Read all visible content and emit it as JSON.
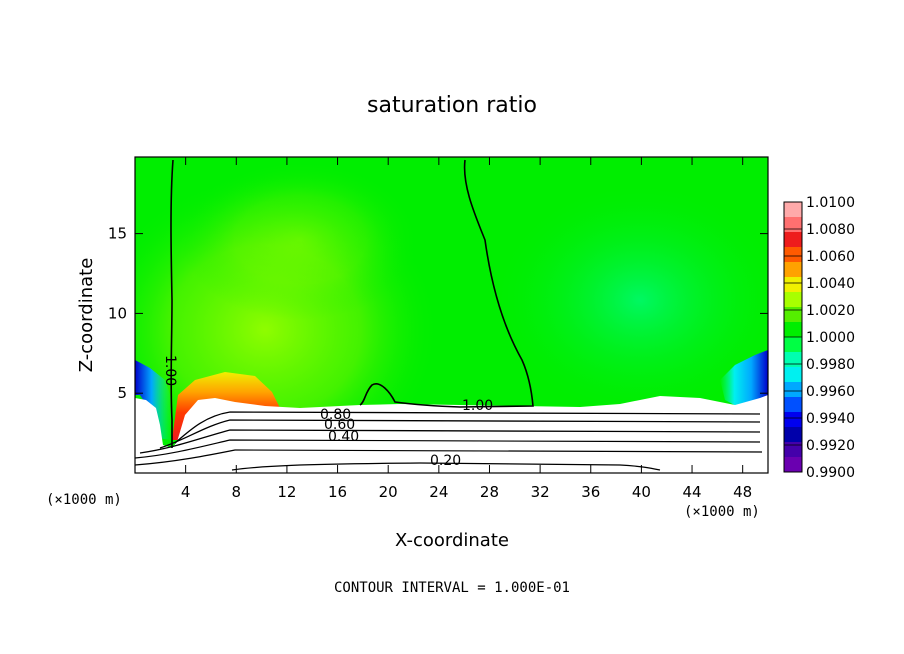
{
  "chart_data": {
    "type": "heatmap",
    "title": "saturation ratio",
    "xlabel": "X-coordinate",
    "ylabel": "Z-coordinate",
    "x_unit": "(×1000 m)",
    "y_unit": "(×1000 m)",
    "xlim": [
      0,
      50
    ],
    "ylim": [
      0,
      19.8
    ],
    "x_ticks": [
      4,
      8,
      12,
      16,
      20,
      24,
      28,
      32,
      36,
      40,
      44,
      48
    ],
    "y_ticks": [
      5,
      10,
      15
    ],
    "colorbar": {
      "min": 0.99,
      "max": 1.01,
      "labels": [
        "1.0100",
        "1.0080",
        "1.0060",
        "1.0040",
        "1.0020",
        "1.0000",
        "0.9980",
        "0.9960",
        "0.9940",
        "0.9920",
        "0.9900"
      ],
      "colors": [
        "#ffaaaa",
        "#ff7070",
        "#ee1c1c",
        "#ff5a00",
        "#ffa200",
        "#f0f000",
        "#a8ff00",
        "#55ee00",
        "#00ee00",
        "#00ff44",
        "#00ffb0",
        "#00f0f0",
        "#00a8ff",
        "#0050ff",
        "#0000ee",
        "#0000aa",
        "#4400aa",
        "#6a00b0"
      ]
    },
    "contour_labels": [
      "1.00",
      "1.00",
      "0.80",
      "0.60",
      "0.40",
      "0.20"
    ],
    "contour_interval_text": "CONTOUR INTERVAL = 1.000E-01"
  }
}
